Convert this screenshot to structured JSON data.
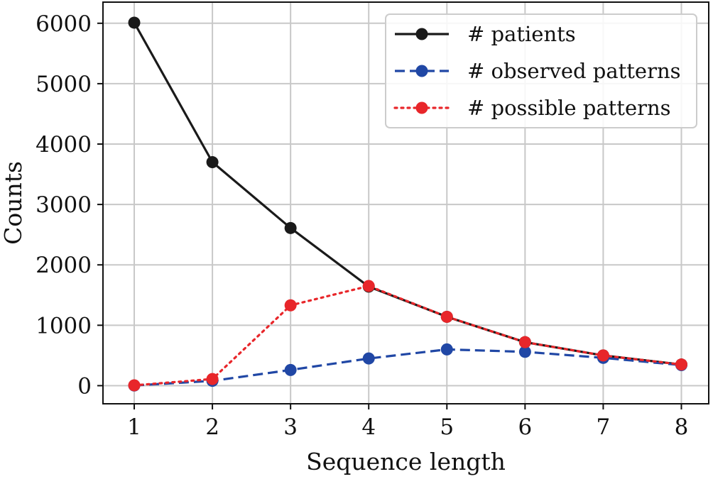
{
  "chart_data": {
    "type": "line",
    "title": "",
    "xlabel": "Sequence length",
    "ylabel": "Counts",
    "x": [
      1,
      2,
      3,
      4,
      5,
      6,
      7,
      8
    ],
    "xlim": [
      0.6,
      8.35
    ],
    "ylim": [
      -300,
      6350
    ],
    "xticks": [
      1,
      2,
      3,
      4,
      5,
      6,
      7,
      8
    ],
    "yticks": [
      0,
      1000,
      2000,
      3000,
      4000,
      5000,
      6000
    ],
    "grid": true,
    "legend_position": "top-right",
    "series": [
      {
        "name": "# patients",
        "values": [
          6010,
          3700,
          2610,
          1640,
          1140,
          720,
          500,
          350
        ],
        "color": "#1a1a1a",
        "line_style": "solid"
      },
      {
        "name": "# observed patterns",
        "values": [
          3,
          80,
          260,
          450,
          600,
          560,
          460,
          340
        ],
        "color": "#2047a5",
        "line_style": "dashed"
      },
      {
        "name": "# possible patterns",
        "values": [
          6,
          110,
          1330,
          1650,
          1140,
          720,
          500,
          350
        ],
        "color": "#e8262a",
        "line_style": "dotted"
      }
    ]
  }
}
